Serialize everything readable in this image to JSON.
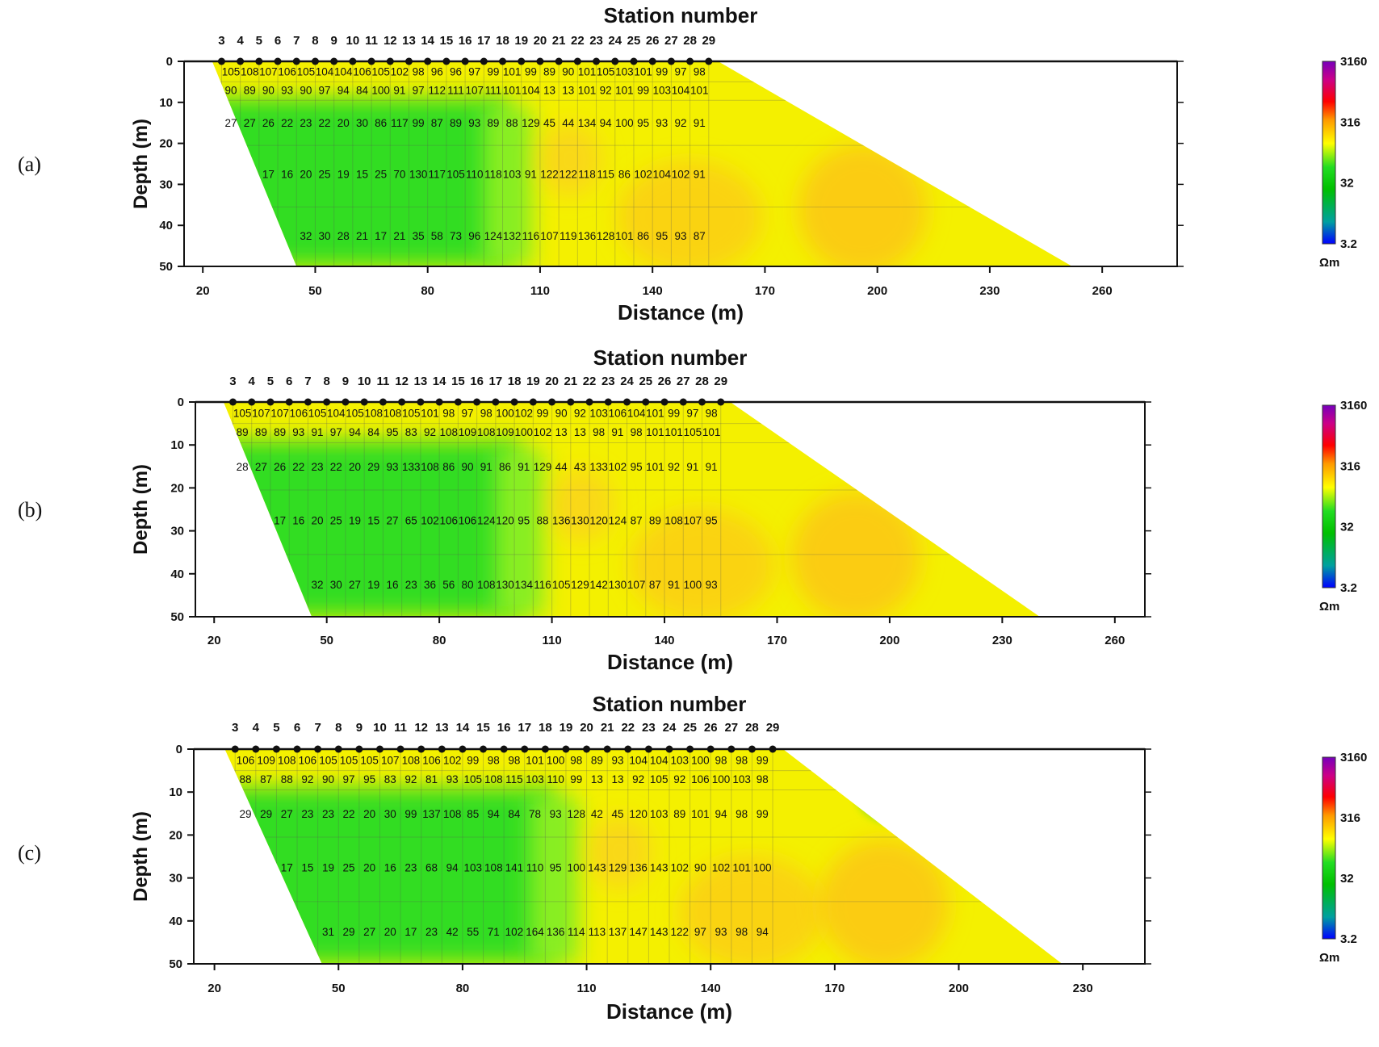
{
  "colorbar": {
    "ticks": [
      "3160",
      "316",
      "32",
      "3.2"
    ],
    "unit": "Ωm",
    "colors": [
      "#0000ff",
      "#00c000",
      "#22dd22",
      "#ffff00",
      "#ff8800",
      "#ff0000",
      "#cc0088",
      "#7700bb"
    ]
  },
  "chart_data": [
    {
      "type": "heatmap",
      "panel_label": "(a)",
      "title": "Station number",
      "xlabel": "Distance (m)",
      "ylabel": "Depth (m)",
      "stations": [
        "3",
        "4",
        "5",
        "6",
        "7",
        "8",
        "9",
        "10",
        "11",
        "12",
        "13",
        "14",
        "15",
        "16",
        "17",
        "18",
        "19",
        "20",
        "21",
        "22",
        "23",
        "24",
        "25",
        "26",
        "27",
        "28",
        "29"
      ],
      "x_ticks": [
        20,
        50,
        80,
        110,
        140,
        170,
        200,
        230,
        260
      ],
      "y_ticks": [
        0,
        10,
        20,
        30,
        40,
        50
      ],
      "xlim": [
        15,
        280
      ],
      "ylim": [
        0,
        50
      ],
      "footprint_bottom_x": [
        45,
        252
      ],
      "low_anomaly": {
        "x": 198,
        "z": 10
      },
      "rows": [
        {
          "depth": 2.5,
          "x_start": 25,
          "values": [
            "105",
            "108",
            "107",
            "106",
            "105",
            "104",
            "104",
            "106",
            "105",
            "102",
            "98",
            "96",
            "96",
            "97",
            "99",
            "101",
            "99",
            "89",
            "90",
            "101",
            "105",
            "103",
            "101",
            "99",
            "97",
            "98"
          ]
        },
        {
          "depth": 7,
          "x_start": 25,
          "values": [
            "90",
            "89",
            "90",
            "93",
            "90",
            "97",
            "94",
            "84",
            "100",
            "91",
            "97",
            "112",
            "111",
            "107",
            "111",
            "101",
            "104",
            "13",
            "13",
            "101",
            "92",
            "101",
            "99",
            "103",
            "104",
            "101"
          ]
        },
        {
          "depth": 15,
          "x_start": 25,
          "values": [
            "27",
            "27",
            "26",
            "22",
            "23",
            "22",
            "20",
            "30",
            "86",
            "117",
            "99",
            "87",
            "89",
            "93",
            "89",
            "88",
            "129",
            "45",
            "44",
            "134",
            "94",
            "100",
            "95",
            "93",
            "92",
            "91"
          ]
        },
        {
          "depth": 27.5,
          "x_start": 35,
          "values": [
            "17",
            "16",
            "20",
            "25",
            "19",
            "15",
            "25",
            "70",
            "130",
            "117",
            "105",
            "110",
            "118",
            "103",
            "91",
            "122",
            "122",
            "118",
            "115",
            "86",
            "102",
            "104",
            "102",
            "91"
          ]
        },
        {
          "depth": 42.5,
          "x_start": 45,
          "values": [
            "32",
            "30",
            "28",
            "21",
            "17",
            "21",
            "35",
            "58",
            "73",
            "96",
            "124",
            "132",
            "116",
            "107",
            "119",
            "136",
            "128",
            "101",
            "86",
            "95",
            "93",
            "87"
          ]
        }
      ]
    },
    {
      "type": "heatmap",
      "panel_label": "(b)",
      "title": "Station number",
      "xlabel": "Distance (m)",
      "ylabel": "Depth (m)",
      "stations": [
        "3",
        "4",
        "5",
        "6",
        "7",
        "8",
        "9",
        "10",
        "11",
        "12",
        "13",
        "14",
        "15",
        "16",
        "17",
        "18",
        "19",
        "20",
        "21",
        "22",
        "23",
        "24",
        "25",
        "26",
        "27",
        "28",
        "29"
      ],
      "x_ticks": [
        20,
        50,
        80,
        110,
        140,
        170,
        200,
        230,
        260
      ],
      "y_ticks": [
        0,
        10,
        20,
        30,
        40,
        50
      ],
      "xlim": [
        15,
        268
      ],
      "ylim": [
        0,
        50
      ],
      "footprint_bottom_x": [
        46,
        240
      ],
      "low_anomaly": {
        "x": 193,
        "z": 10
      },
      "rows": [
        {
          "depth": 2.5,
          "x_start": 25,
          "values": [
            "105",
            "107",
            "107",
            "106",
            "105",
            "104",
            "105",
            "108",
            "108",
            "105",
            "101",
            "98",
            "97",
            "98",
            "100",
            "102",
            "99",
            "90",
            "92",
            "103",
            "106",
            "104",
            "101",
            "99",
            "97",
            "98"
          ]
        },
        {
          "depth": 7,
          "x_start": 25,
          "values": [
            "89",
            "89",
            "89",
            "93",
            "91",
            "97",
            "94",
            "84",
            "95",
            "83",
            "92",
            "108",
            "109",
            "108",
            "109",
            "100",
            "102",
            "13",
            "13",
            "98",
            "91",
            "98",
            "101",
            "101",
            "105",
            "101"
          ]
        },
        {
          "depth": 15,
          "x_start": 25,
          "values": [
            "28",
            "27",
            "26",
            "22",
            "23",
            "22",
            "20",
            "29",
            "93",
            "133",
            "108",
            "86",
            "90",
            "91",
            "86",
            "91",
            "129",
            "44",
            "43",
            "133",
            "102",
            "95",
            "101",
            "92",
            "91",
            "91"
          ]
        },
        {
          "depth": 27.5,
          "x_start": 35,
          "values": [
            "17",
            "16",
            "20",
            "25",
            "19",
            "15",
            "27",
            "65",
            "102",
            "106",
            "106",
            "124",
            "120",
            "95",
            "88",
            "136",
            "130",
            "120",
            "124",
            "87",
            "89",
            "108",
            "107",
            "95"
          ]
        },
        {
          "depth": 42.5,
          "x_start": 45,
          "values": [
            "32",
            "30",
            "27",
            "19",
            "16",
            "23",
            "36",
            "56",
            "80",
            "108",
            "130",
            "134",
            "116",
            "105",
            "129",
            "142",
            "130",
            "107",
            "87",
            "91",
            "100",
            "93"
          ]
        }
      ]
    },
    {
      "type": "heatmap",
      "panel_label": "(c)",
      "title": "Station number",
      "xlabel": "Distance (m)",
      "ylabel": "Depth (m)",
      "stations": [
        "3",
        "4",
        "5",
        "6",
        "7",
        "8",
        "9",
        "10",
        "11",
        "12",
        "13",
        "14",
        "15",
        "16",
        "17",
        "18",
        "19",
        "20",
        "21",
        "22",
        "23",
        "24",
        "25",
        "26",
        "27",
        "28",
        "29"
      ],
      "x_ticks": [
        20,
        50,
        80,
        110,
        140,
        170,
        200,
        230
      ],
      "y_ticks": [
        0,
        10,
        20,
        30,
        40,
        50
      ],
      "xlim": [
        15,
        245
      ],
      "ylim": [
        0,
        50
      ],
      "footprint_bottom_x": [
        46,
        225
      ],
      "low_anomaly": {
        "x": 184,
        "z": 10
      },
      "rows": [
        {
          "depth": 2.5,
          "x_start": 25,
          "values": [
            "106",
            "109",
            "108",
            "106",
            "105",
            "105",
            "105",
            "107",
            "108",
            "106",
            "102",
            "99",
            "98",
            "98",
            "101",
            "100",
            "98",
            "89",
            "93",
            "104",
            "104",
            "103",
            "100",
            "98",
            "98",
            "99"
          ]
        },
        {
          "depth": 7,
          "x_start": 25,
          "values": [
            "88",
            "87",
            "88",
            "92",
            "90",
            "97",
            "95",
            "83",
            "92",
            "81",
            "93",
            "105",
            "108",
            "115",
            "103",
            "110",
            "99",
            "13",
            "13",
            "92",
            "105",
            "92",
            "106",
            "100",
            "103",
            "98"
          ]
        },
        {
          "depth": 15,
          "x_start": 25,
          "values": [
            "29",
            "29",
            "27",
            "23",
            "23",
            "22",
            "20",
            "30",
            "99",
            "137",
            "108",
            "85",
            "94",
            "84",
            "78",
            "93",
            "128",
            "42",
            "45",
            "120",
            "103",
            "89",
            "101",
            "94",
            "98",
            "99"
          ]
        },
        {
          "depth": 27.5,
          "x_start": 35,
          "values": [
            "17",
            "15",
            "19",
            "25",
            "20",
            "16",
            "23",
            "68",
            "94",
            "103",
            "108",
            "141",
            "110",
            "95",
            "100",
            "143",
            "129",
            "136",
            "143",
            "102",
            "90",
            "102",
            "101",
            "100"
          ]
        },
        {
          "depth": 42.5,
          "x_start": 45,
          "values": [
            "31",
            "29",
            "27",
            "20",
            "17",
            "23",
            "42",
            "55",
            "71",
            "102",
            "164",
            "136",
            "114",
            "113",
            "137",
            "147",
            "143",
            "122",
            "97",
            "93",
            "98",
            "94"
          ]
        }
      ]
    }
  ]
}
